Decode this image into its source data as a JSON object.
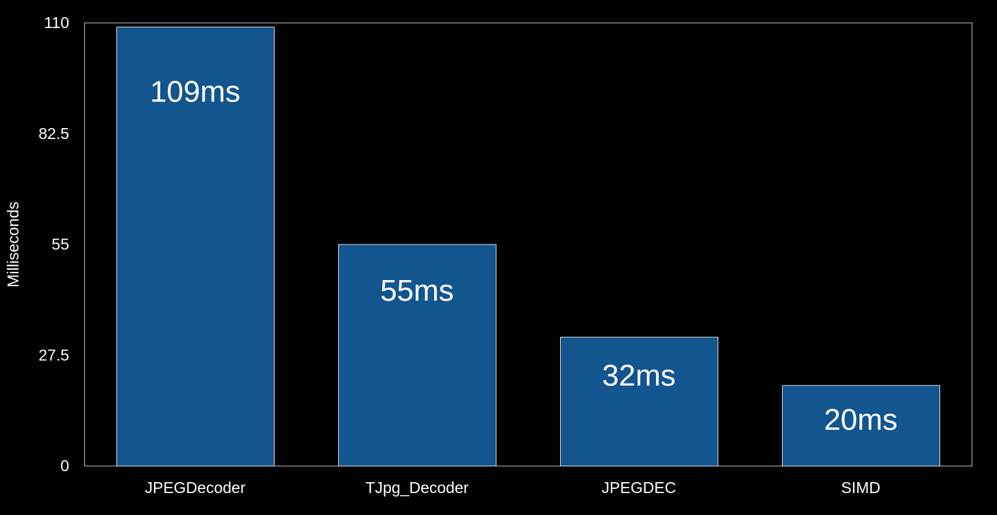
{
  "chart_data": {
    "type": "bar",
    "title": "",
    "xlabel": "",
    "ylabel": "Milliseconds",
    "ylim": [
      0,
      110
    ],
    "yticks": [
      "0",
      "27.5",
      "55",
      "82.5",
      "110"
    ],
    "categories": [
      "JPEGDecoder",
      "TJpg_Decoder",
      "JPEGDEC",
      "SIMD"
    ],
    "values": [
      109,
      55,
      32,
      20
    ],
    "data_labels": [
      "109ms",
      "55ms",
      "32ms",
      "20ms"
    ],
    "grid": false,
    "legend": "none",
    "colors": {
      "bar": "#13558f",
      "background": "#000000",
      "text": "#ffffff",
      "frame": "#bfbfbf"
    }
  }
}
